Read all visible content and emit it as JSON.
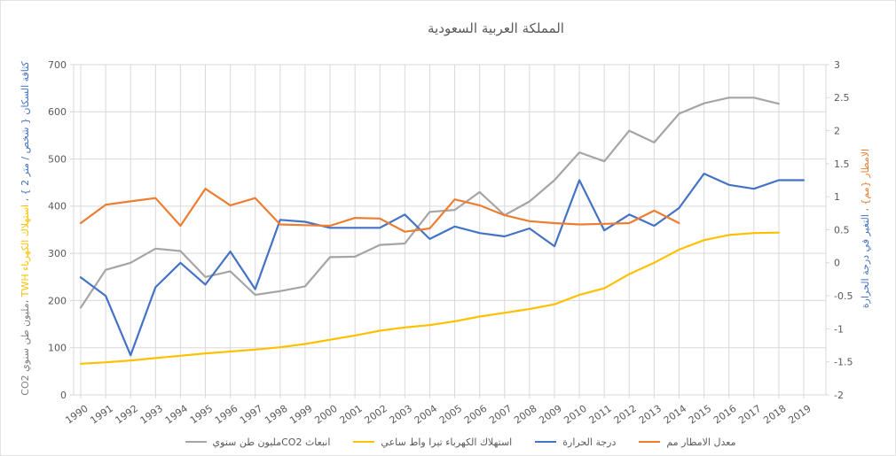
{
  "title": "المملكة العربية السعودية",
  "colors": {
    "grid": "#D9D9D9",
    "plot_border": "#D9D9D9",
    "tick_text": "#595959",
    "title_text": "#595959",
    "co2": "#A5A5A5",
    "electricity": "#FFC000",
    "temperature": "#4472C4",
    "rainfall": "#ED7D31"
  },
  "left_axis": {
    "ticks": [
      "0",
      "100",
      "200",
      "300",
      "400",
      "500",
      "600",
      "700"
    ],
    "min": 0,
    "max": 700,
    "step": 100,
    "title_parts": [
      {
        "text": "كثافة السكان { شخص / متر 2 }",
        "color": "#4472C4"
      },
      {
        "text": " ، ",
        "color": "#7F7F7F"
      },
      {
        "text": "استهلاك الكهرباء TWH",
        "color": "#FFC000"
      },
      {
        "text": " ،مليون طن سنوي CO2",
        "color": "#7F7F7F"
      }
    ]
  },
  "right_axis": {
    "ticks": [
      "-2",
      "-1.5",
      "-1",
      "-0.5",
      "0",
      "0.5",
      "1",
      "1.5",
      "2",
      "2.5",
      "3"
    ],
    "min": -2,
    "max": 3,
    "step": 0.5,
    "title_parts": [
      {
        "text": "الامطار {مم}",
        "color": "#ED7D31"
      },
      {
        "text": " ، ",
        "color": "#7F7F7F"
      },
      {
        "text": "التغير في درجة الحرارة",
        "color": "#4472C4"
      }
    ]
  },
  "legend": {
    "items": [
      {
        "id": "co2",
        "label": "انبعاث CO2مليون طن سنوي",
        "color": "#A5A5A5"
      },
      {
        "id": "electricity",
        "label": "استهلاك الكهرباء تيرا واط ساعي",
        "color": "#FFC000"
      },
      {
        "id": "temperature",
        "label": "درجة الحرارة",
        "color": "#4472C4"
      },
      {
        "id": "rainfall",
        "label": "معدل الامطار مم",
        "color": "#ED7D31"
      }
    ]
  },
  "chart_data": {
    "type": "line",
    "title": "المملكة العربية السعودية",
    "x": [
      1990,
      1991,
      1992,
      1993,
      1994,
      1995,
      1996,
      1997,
      1998,
      1999,
      2000,
      2001,
      2002,
      2003,
      2004,
      2005,
      2006,
      2007,
      2008,
      2009,
      2010,
      2011,
      2012,
      2013,
      2014,
      2015,
      2016,
      2017,
      2018,
      2019
    ],
    "left_ylim": [
      0,
      700
    ],
    "right_ylim": [
      -2,
      3
    ],
    "grid": true,
    "legend_position": "bottom",
    "series": [
      {
        "id": "co2",
        "name": "انبعاث CO2مليون طن سنوي",
        "axis": "left",
        "color": "#A5A5A5",
        "values": [
          185,
          265,
          280,
          310,
          305,
          250,
          262,
          212,
          220,
          230,
          292,
          293,
          318,
          321,
          388,
          392,
          430,
          381,
          410,
          455,
          514,
          495,
          560,
          535,
          596,
          618,
          630,
          630,
          617,
          null
        ]
      },
      {
        "id": "electricity",
        "name": "استهلاك الكهرباء تيرا واط ساعي",
        "axis": "left",
        "color": "#FFC000",
        "values": [
          66,
          69,
          73,
          78,
          83,
          88,
          92,
          96,
          101,
          108,
          117,
          126,
          136,
          143,
          148,
          156,
          166,
          174,
          182,
          192,
          212,
          226,
          256,
          280,
          308,
          328,
          339,
          343,
          344,
          null
        ]
      },
      {
        "id": "temperature",
        "name": "درجة الحرارة",
        "axis": "right",
        "color": "#4472C4",
        "values": [
          -0.22,
          -0.5,
          -1.4,
          -0.37,
          0,
          -0.33,
          0.17,
          -0.4,
          0.65,
          0.62,
          0.53,
          0.53,
          0.53,
          0.73,
          0.36,
          0.55,
          0.45,
          0.4,
          0.52,
          0.25,
          1.25,
          0.49,
          0.73,
          0.56,
          0.83,
          1.35,
          1.18,
          1.12,
          1.25,
          1.25
        ]
      },
      {
        "id": "rainfall",
        "name": "معدل الامطار مم",
        "axis": "right",
        "color": "#ED7D31",
        "values": [
          0.6,
          0.88,
          0.93,
          0.98,
          0.56,
          1.12,
          0.87,
          0.98,
          0.58,
          0.57,
          0.56,
          0.68,
          0.67,
          0.47,
          0.52,
          0.96,
          0.87,
          0.72,
          0.63,
          0.6,
          0.58,
          0.59,
          0.6,
          0.79,
          0.6,
          null,
          null,
          null,
          null,
          null
        ]
      }
    ]
  }
}
